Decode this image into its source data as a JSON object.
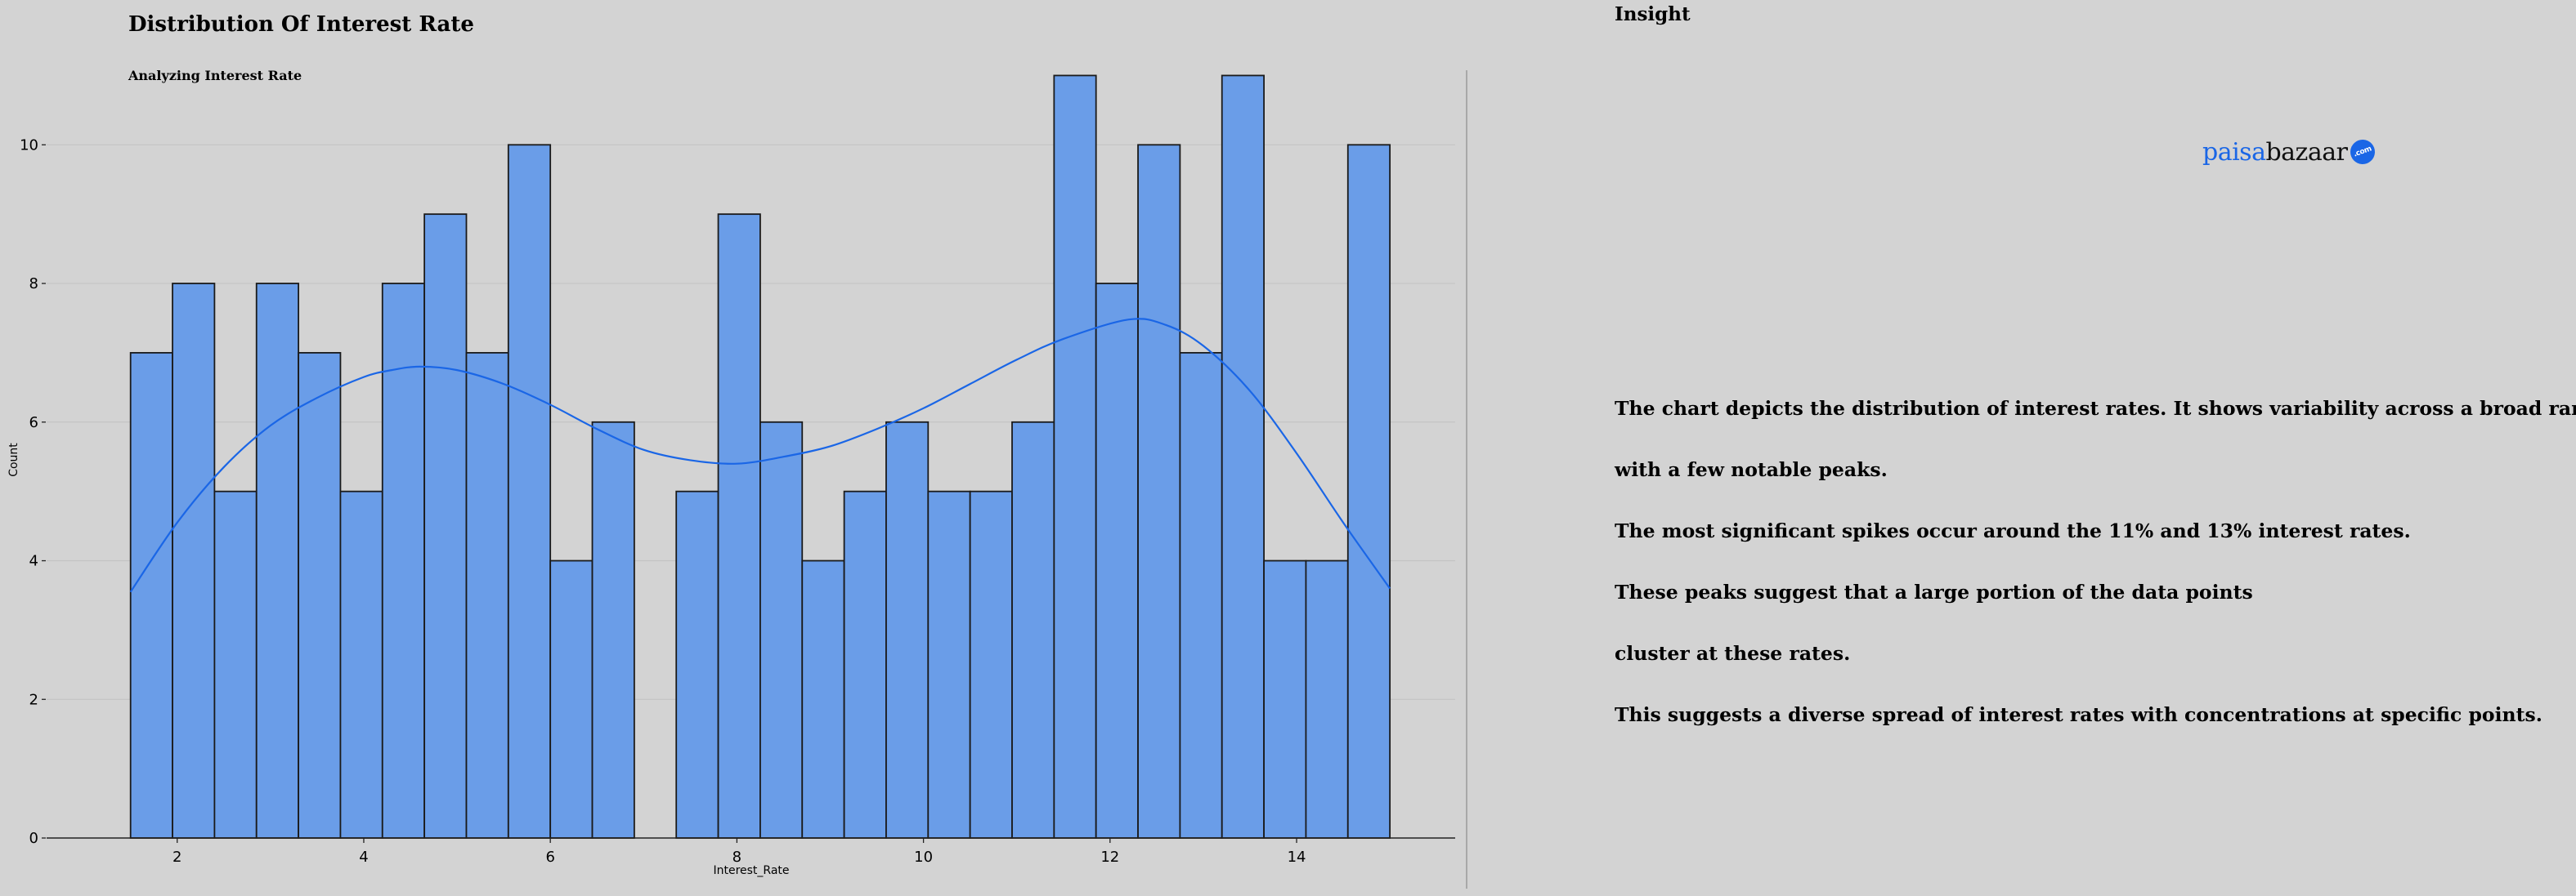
{
  "chart_data": {
    "type": "bar",
    "title": "Distribution Of Interest Rate",
    "subtitle": "Analyzing Interest Rate",
    "xlabel": "Interest_Rate",
    "ylabel": "Count",
    "xlim": [
      0.6,
      15.7
    ],
    "ylim": [
      0,
      11.5
    ],
    "xticks": [
      2,
      4,
      6,
      8,
      10,
      12,
      14
    ],
    "yticks": [
      0,
      2,
      4,
      6,
      8,
      10
    ],
    "grid": "horizontal",
    "bin_start": 1.5,
    "bin_width": 0.45,
    "counts": [
      7,
      8,
      5,
      8,
      7,
      5,
      8,
      9,
      7,
      10,
      4,
      6,
      0,
      5,
      9,
      6,
      4,
      5,
      6,
      5,
      5,
      6,
      11,
      8,
      10,
      7,
      11,
      4,
      4,
      10
    ],
    "kde": {
      "x": [
        1.5,
        2.0,
        2.5,
        3.0,
        3.5,
        4.0,
        4.3,
        4.6,
        5.0,
        5.5,
        6.0,
        6.5,
        7.0,
        7.5,
        8.0,
        8.5,
        9.0,
        9.5,
        10.0,
        10.5,
        11.0,
        11.5,
        12.2,
        12.6,
        13.0,
        13.5,
        14.0,
        14.5,
        15.0
      ],
      "y": [
        3.55,
        4.55,
        5.35,
        5.95,
        6.35,
        6.65,
        6.75,
        6.8,
        6.75,
        6.55,
        6.25,
        5.9,
        5.6,
        5.45,
        5.4,
        5.5,
        5.65,
        5.9,
        6.2,
        6.55,
        6.9,
        7.2,
        7.48,
        7.4,
        7.1,
        6.45,
        5.55,
        4.55,
        3.6
      ]
    },
    "colors": {
      "bar": "#6a9de8",
      "bar_edge": "#1a1a1a",
      "kde": "#1a66e6"
    }
  },
  "insight": {
    "heading": "Insight",
    "lines": [
      "The chart depicts the distribution of interest rates. It shows variability across a broad range,",
      "with a few notable peaks.",
      "The most significant spikes occur around the 11% and 13% interest rates.",
      "These peaks suggest that a large portion of the data points",
      "cluster at these rates.",
      "This suggests a diverse spread of interest rates with concentrations at specific points."
    ]
  },
  "logo": {
    "part1": "paisa",
    "part2": "bazaar",
    "badge": ".com"
  }
}
